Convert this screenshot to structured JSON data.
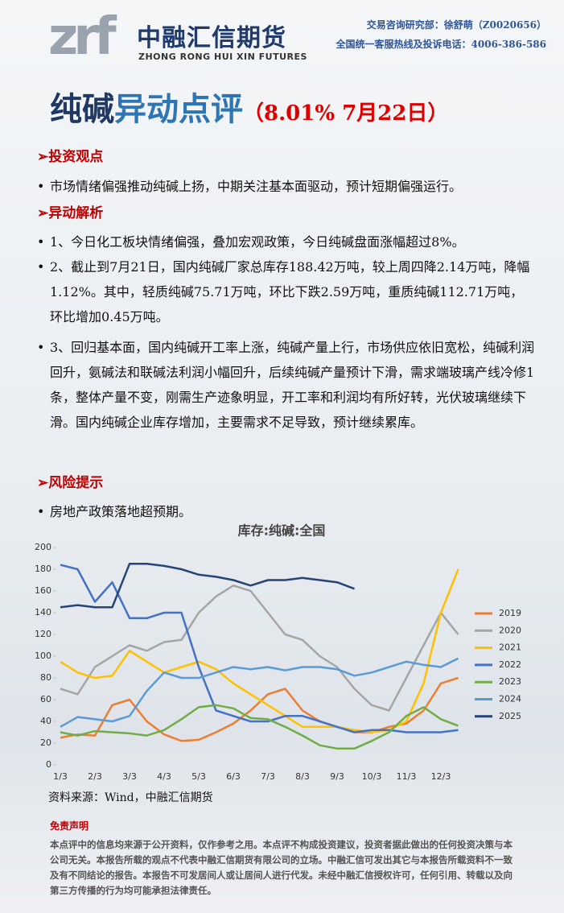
{
  "header": {
    "logo_mark": "zrf",
    "company": "中融汇信期货",
    "company_en": "ZHONG RONG HUI XIN FUTURES",
    "contact_1": "交易咨询研究部：徐舒萌（Z0020656）",
    "contact_2": "全国统一客服热线及投诉电话：4006-386-586"
  },
  "title": {
    "subject": "纯碱",
    "rest": "异动点评",
    "note": "（8.01% 7月22日）"
  },
  "sections": [
    {
      "heading": "➢投资观点",
      "bullets": [
        "市场情绪偏强推动纯碱上扬，中期关注基本面驱动，预计短期偏强运行。"
      ]
    },
    {
      "heading": "➢异动解析",
      "bullets": [
        "1、今日化工板块情绪偏强，叠加宏观政策，今日纯碱盘面涨幅超过8%。",
        "2、截止到7月21日，国内纯碱厂家总库存188.42万吨，较上周四降2.14万吨，降幅1.12%。其中，轻质纯碱75.71万吨，环比下跌2.59万吨，重质纯碱112.71万吨，环比增加0.45万吨。",
        "3、回归基本面，国内纯碱开工率上涨，纯碱产量上行，市场供应依旧宽松，纯碱利润回升，氨碱法和联碱法利润小幅回升，后续纯碱产量预计下滑，需求端玻璃产线冷修1条，整体产量不变，刚需生产迹象明显，开工率和利润均有所好转，光伏玻璃继续下滑。国内纯碱企业库存增加，主要需求不足导致，预计继续累库。"
      ]
    },
    {
      "heading": "➢风险提示",
      "bullets": [
        "房地产政策落地超预期。"
      ]
    }
  ],
  "chart_data": {
    "type": "line",
    "title": "库存:纯碱:全国",
    "categories": [
      "1/3",
      null,
      "2/3",
      null,
      "3/3",
      null,
      "4/3",
      null,
      "5/3",
      null,
      "6/3",
      null,
      "7/3",
      null,
      "8/3",
      null,
      "9/3",
      null,
      "10/3",
      null,
      "11/3",
      null,
      "12/3",
      null
    ],
    "ylim": [
      0,
      200
    ],
    "yticks": [
      0,
      20,
      40,
      60,
      80,
      100,
      120,
      140,
      160,
      180,
      200
    ],
    "series": [
      {
        "name": "2019",
        "color": "#ed7d31",
        "values": [
          25,
          28,
          27,
          55,
          60,
          40,
          28,
          22,
          23,
          30,
          38,
          50,
          65,
          70,
          50,
          40,
          35,
          30,
          30,
          35,
          38,
          50,
          75,
          80
        ]
      },
      {
        "name": "2020",
        "color": "#a5a5a5",
        "values": [
          70,
          65,
          90,
          100,
          110,
          105,
          113,
          115,
          140,
          155,
          165,
          160,
          140,
          120,
          115,
          100,
          90,
          70,
          55,
          50,
          80,
          110,
          140,
          120
        ]
      },
      {
        "name": "2021",
        "color": "#ffc000",
        "values": [
          95,
          85,
          80,
          82,
          105,
          95,
          85,
          90,
          95,
          88,
          75,
          65,
          55,
          45,
          35,
          35,
          35,
          32,
          30,
          32,
          40,
          75,
          140,
          180
        ]
      },
      {
        "name": "2022",
        "color": "#4472c4",
        "values": [
          184,
          180,
          150,
          168,
          135,
          135,
          140,
          140,
          90,
          50,
          45,
          40,
          40,
          45,
          45,
          40,
          35,
          30,
          32,
          32,
          30,
          30,
          30,
          32
        ]
      },
      {
        "name": "2023",
        "color": "#70ad47",
        "values": [
          30,
          27,
          31,
          30,
          29,
          27,
          32,
          42,
          53,
          55,
          52,
          43,
          42,
          35,
          27,
          18,
          15,
          15,
          22,
          30,
          45,
          53,
          42,
          36
        ]
      },
      {
        "name": "2024",
        "color": "#5b9bd5",
        "values": [
          35,
          44,
          42,
          40,
          45,
          68,
          85,
          80,
          80,
          85,
          90,
          88,
          90,
          87,
          90,
          90,
          88,
          82,
          85,
          90,
          95,
          92,
          90,
          98
        ]
      },
      {
        "name": "2025",
        "color": "#264478",
        "values": [
          145,
          147,
          145,
          145,
          185,
          185,
          183,
          180,
          175,
          173,
          170,
          165,
          170,
          170,
          172,
          170,
          168,
          162,
          null,
          null,
          null,
          null,
          null,
          null
        ]
      }
    ]
  },
  "source": "资料来源：Wind，中融汇信期货",
  "disclaimer": {
    "heading": "免责声明",
    "text": "本点评中的信息均来源于公开资料，仅作参考之用。本点评不构成投资建议，投资者据此做出的任何投资决策与本公司无关。本报告所载的观点不代表中融汇信期货有限公司的立场。中融汇信可发出其它与本报告所载资料不一致及有不同结论的报告。本报告不可发居间人或让居间人进行代发。未经中融汇信授权许可，任何引用、转载以及向第三方传播的行为均可能承担法律责任。"
  }
}
